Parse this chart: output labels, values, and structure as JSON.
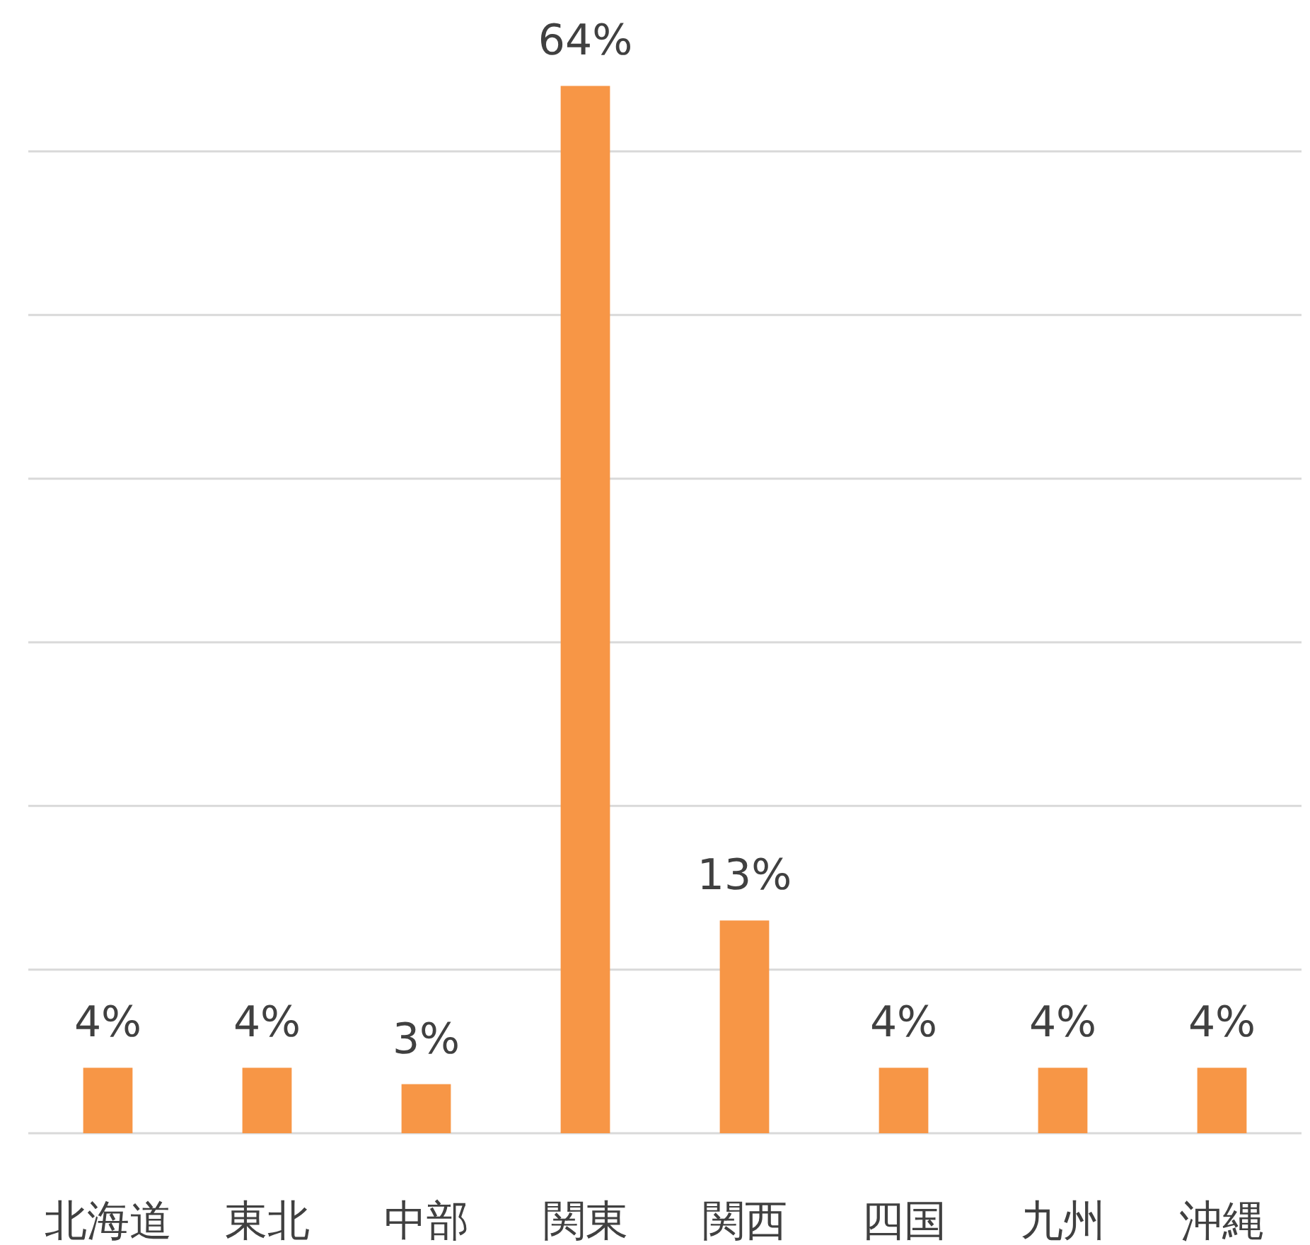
{
  "chart_data": {
    "type": "bar",
    "categories": [
      "北海道",
      "東北",
      "中部",
      "関東",
      "関西",
      "四国",
      "九州",
      "沖縄"
    ],
    "values": [
      4,
      4,
      3,
      64,
      13,
      4,
      4,
      4
    ],
    "value_labels": [
      "4%",
      "4%",
      "3%",
      "64%",
      "13%",
      "4%",
      "4%",
      "4%"
    ],
    "color": "#f79646",
    "yticks": [
      {
        "value": 0,
        "label": null
      },
      {
        "value": 10,
        "label": null
      },
      {
        "value": 20,
        "label": null
      },
      {
        "value": 30,
        "label": null
      },
      {
        "value": 40,
        "label": null
      },
      {
        "value": 50,
        "label": null
      },
      {
        "value": 60,
        "label": null
      }
    ],
    "grid": "y",
    "tick_labels": "x"
  }
}
